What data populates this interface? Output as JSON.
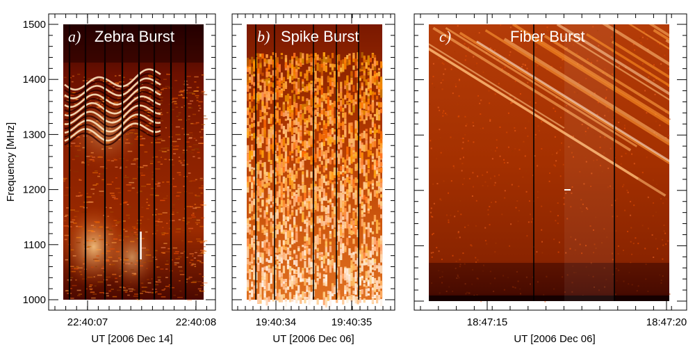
{
  "figure": {
    "ylabel": "Frequency [MHz]",
    "colors": {
      "background": "#ffffff",
      "axis": "#000000",
      "spectrum_dark": "#330000",
      "spectrum_mid": "#b33000",
      "spectrum_bright": "#ffe6b0",
      "title": "#ffffff"
    }
  },
  "chart_data": [
    {
      "type": "heatmap",
      "id": "zebra",
      "letter": "a)",
      "title": "Zebra Burst",
      "xlabel": "UT [2006 Dec 14]",
      "x_ticks": [
        "22:40:07",
        "22:40:08"
      ],
      "y_ticks": [
        1000,
        1100,
        1200,
        1300,
        1400,
        1500
      ],
      "ylim": [
        1000,
        1500
      ]
    },
    {
      "type": "heatmap",
      "id": "spike",
      "letter": "b)",
      "title": "Spike Burst",
      "xlabel": "UT [2006 Dec 06]",
      "x_ticks": [
        "19:40:34",
        "19:40:35"
      ],
      "ylim": [
        1000,
        1500
      ]
    },
    {
      "type": "heatmap",
      "id": "fiber",
      "letter": "c)",
      "title": "Fiber Burst",
      "xlabel": "UT [2006 Dec 06]",
      "x_ticks": [
        "18:47:15",
        "18:47:20"
      ],
      "ylim": [
        1000,
        1500
      ]
    }
  ]
}
